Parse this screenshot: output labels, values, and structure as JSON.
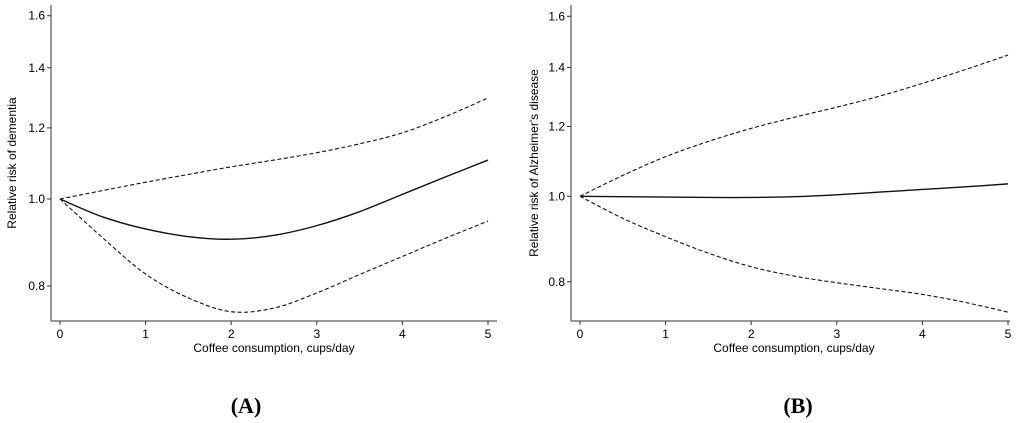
{
  "chart_data": [
    {
      "type": "line",
      "panel_label": "(A)",
      "xlabel": "Coffee consumption, cups/day",
      "ylabel": "Relative risk of dementia",
      "yscale": "log",
      "xlim": [
        0,
        5
      ],
      "ylim": [
        0.73,
        1.64
      ],
      "xticks": [
        "0",
        "1",
        "2",
        "3",
        "4",
        "5"
      ],
      "yticks": [
        "0.8",
        "1.0",
        "1.2",
        "1.4",
        "1.6"
      ],
      "grid": false,
      "x": [
        0,
        0.5,
        1,
        1.5,
        2,
        2.5,
        3,
        3.5,
        4,
        4.5,
        5
      ],
      "series": [
        {
          "style": "solid",
          "values": [
            1.0,
            0.955,
            0.926,
            0.908,
            0.902,
            0.911,
            0.934,
            0.968,
            1.012,
            1.058,
            1.105
          ]
        },
        {
          "style": "dashed",
          "values": [
            1.0,
            1.022,
            1.044,
            1.065,
            1.086,
            1.105,
            1.126,
            1.152,
            1.185,
            1.235,
            1.296
          ]
        },
        {
          "style": "dashed",
          "values": [
            1.0,
            0.905,
            0.825,
            0.776,
            0.749,
            0.756,
            0.786,
            0.824,
            0.863,
            0.904,
            0.945
          ]
        }
      ]
    },
    {
      "type": "line",
      "panel_label": "(B)",
      "xlabel": "Coffee consumption, cups/day",
      "ylabel": "Relative risk of Alzheimer's disease",
      "yscale": "log",
      "xlim": [
        0,
        5
      ],
      "ylim": [
        0.73,
        1.66
      ],
      "xticks": [
        "0",
        "1",
        "2",
        "3",
        "4",
        "5"
      ],
      "yticks": [
        "0.8",
        "1.0",
        "1.2",
        "1.4",
        "1.6"
      ],
      "grid": false,
      "x": [
        0,
        0.5,
        1,
        1.5,
        2,
        2.5,
        3,
        3.5,
        4,
        4.5,
        5
      ],
      "series": [
        {
          "style": "solid",
          "values": [
            1.0,
            0.999,
            0.998,
            0.997,
            0.997,
            0.999,
            1.004,
            1.011,
            1.018,
            1.025,
            1.033
          ]
        },
        {
          "style": "dashed",
          "values": [
            1.0,
            1.056,
            1.109,
            1.154,
            1.194,
            1.229,
            1.262,
            1.299,
            1.343,
            1.392,
            1.446
          ]
        },
        {
          "style": "dashed",
          "values": [
            1.0,
            0.944,
            0.9,
            0.862,
            0.832,
            0.812,
            0.798,
            0.786,
            0.774,
            0.758,
            0.739
          ]
        }
      ]
    }
  ]
}
